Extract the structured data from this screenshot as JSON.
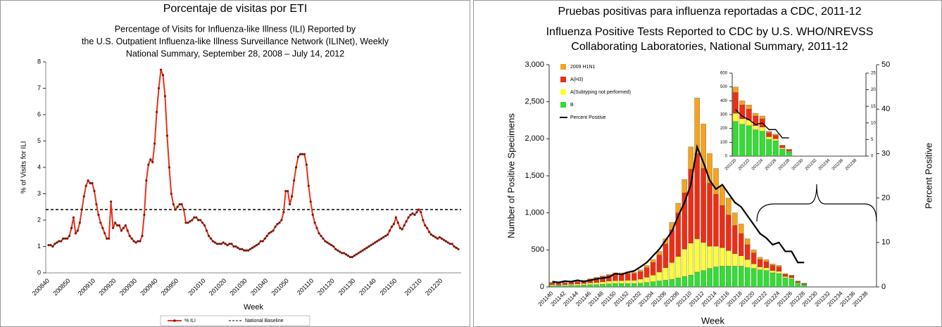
{
  "chart_data": [
    {
      "type": "line",
      "title": "Porcentaje de visitas por ETI",
      "subtitle": [
        "Percentage of Visits for Influenza-like Illness (ILI) Reported by",
        "the U.S. Outpatient Influenza-like Illness Surveillance Network (ILINet), Weekly",
        "National Summary, September 28, 2008 – July 14, 2012"
      ],
      "xlabel": "Week",
      "ylabel": "% of Visits for ILI",
      "ylim": [
        0,
        8
      ],
      "yticks": [
        0,
        1,
        2,
        3,
        4,
        5,
        6,
        7,
        8
      ],
      "baseline_name": "National Baseline",
      "baseline": 2.4,
      "categories": [
        "200840",
        null,
        null,
        null,
        null,
        null,
        null,
        null,
        null,
        null,
        "200850",
        null,
        null,
        null,
        null,
        null,
        null,
        null,
        null,
        null,
        null,
        null,
        "200910",
        null,
        null,
        null,
        null,
        null,
        null,
        null,
        null,
        null,
        "200920",
        null,
        null,
        null,
        null,
        null,
        null,
        null,
        null,
        null,
        "200930",
        null,
        null,
        null,
        null,
        null,
        null,
        null,
        null,
        null,
        "200940",
        null,
        null,
        null,
        null,
        null,
        null,
        null,
        null,
        null,
        "200950",
        null,
        null,
        null,
        null,
        null,
        null,
        null,
        null,
        null,
        null,
        null,
        null,
        "201010",
        null,
        null,
        null,
        null,
        null,
        null,
        null,
        null,
        null,
        "201020",
        null,
        null,
        null,
        null,
        null,
        null,
        null,
        null,
        null,
        "201030",
        null,
        null,
        null,
        null,
        null,
        null,
        null,
        null,
        null,
        "201040",
        null,
        null,
        null,
        null,
        null,
        null,
        null,
        null,
        null,
        "201050",
        null,
        null,
        null,
        null,
        null,
        null,
        null,
        null,
        null,
        null,
        null,
        "201110",
        null,
        null,
        null,
        null,
        null,
        null,
        null,
        null,
        null,
        "201120",
        null,
        null,
        null,
        null,
        null,
        null,
        null,
        null,
        null,
        "201130",
        null,
        null,
        null,
        null,
        null,
        null,
        null,
        null,
        null,
        "201140",
        null,
        null,
        null,
        null,
        null,
        null,
        null,
        null,
        null,
        "201150",
        null,
        null,
        null,
        null,
        null,
        null,
        null,
        null,
        null,
        null,
        null,
        "201210",
        null,
        null,
        null,
        null,
        null,
        null,
        null,
        null,
        null,
        "201220",
        null,
        null,
        null,
        null,
        null,
        null,
        null,
        null
      ],
      "series": [
        {
          "name": "% ILI",
          "color": "#e8321c",
          "values": [
            1.05,
            1.05,
            1.0,
            1.1,
            1.15,
            1.2,
            1.2,
            1.3,
            1.3,
            1.3,
            1.4,
            1.7,
            2.1,
            1.5,
            1.6,
            1.9,
            2.4,
            2.9,
            3.3,
            3.5,
            3.4,
            3.4,
            3.1,
            2.6,
            2.2,
            1.9,
            1.7,
            1.5,
            1.3,
            1.3,
            2.7,
            1.7,
            1.9,
            1.8,
            1.8,
            1.6,
            1.7,
            1.8,
            1.6,
            1.4,
            1.3,
            1.2,
            1.15,
            1.2,
            1.2,
            1.4,
            2.2,
            3.5,
            4.1,
            4.3,
            4.2,
            4.9,
            6.1,
            7.0,
            7.7,
            7.5,
            6.7,
            5.2,
            4.0,
            3.0,
            2.6,
            2.4,
            2.5,
            2.6,
            2.6,
            2.4,
            1.9,
            1.9,
            1.95,
            2.0,
            2.1,
            2.1,
            2.0,
            2.0,
            1.9,
            1.8,
            1.6,
            1.4,
            1.3,
            1.2,
            1.15,
            1.1,
            1.1,
            1.1,
            1.15,
            1.1,
            1.05,
            1.1,
            1.1,
            1.0,
            1.0,
            0.95,
            0.9,
            0.9,
            0.85,
            0.85,
            0.85,
            0.9,
            0.95,
            1.0,
            1.05,
            1.1,
            1.2,
            1.2,
            1.3,
            1.4,
            1.5,
            1.55,
            1.6,
            1.75,
            1.85,
            1.9,
            2.0,
            2.3,
            3.1,
            3.1,
            2.6,
            2.9,
            3.5,
            4.0,
            4.4,
            4.5,
            4.5,
            4.5,
            4.1,
            3.3,
            2.7,
            2.2,
            1.9,
            1.7,
            1.5,
            1.4,
            1.3,
            1.2,
            1.15,
            1.1,
            1.05,
            1.0,
            0.9,
            0.85,
            0.8,
            0.75,
            0.75,
            0.7,
            0.65,
            0.6,
            0.6,
            0.65,
            0.7,
            0.75,
            0.8,
            0.85,
            0.9,
            0.95,
            1.0,
            1.05,
            1.1,
            1.15,
            1.2,
            1.25,
            1.3,
            1.35,
            1.4,
            1.45,
            1.6,
            1.75,
            1.85,
            2.1,
            1.9,
            1.7,
            1.65,
            1.8,
            1.95,
            2.1,
            2.2,
            2.25,
            2.2,
            2.3,
            2.4,
            2.3,
            2.0,
            1.8,
            1.7,
            1.55,
            1.45,
            1.4,
            1.35,
            1.3,
            1.35,
            1.3,
            1.25,
            1.2,
            1.15,
            1.1,
            1.1,
            1.0,
            0.95,
            0.9
          ]
        }
      ]
    },
    {
      "type": "bar",
      "stacked": true,
      "title": "Pruebas positivas para influenza reportadas a CDC, 2011-12",
      "subtitle": [
        "Influenza Positive Tests Reported to CDC by U.S. WHO/NREVSS",
        "Collaborating Laboratories, National Summary, 2011-12"
      ],
      "xlabel": "Week",
      "ylabel": "Number of Positive Specimens",
      "y2label": "Percent Positive",
      "ylim": [
        0,
        3000
      ],
      "yticks": [
        0,
        500,
        {
          "value": 1000,
          "label": "1,000"
        },
        {
          "value": 1500,
          "label": "1,500"
        },
        {
          "value": 2000,
          "label": "2,000"
        },
        {
          "value": 2500,
          "label": "2,500"
        },
        {
          "value": 3000,
          "label": "3,000"
        }
      ],
      "y2lim": [
        0,
        50
      ],
      "y2ticks": [
        0,
        10,
        20,
        30,
        40,
        50
      ],
      "legend": "upper left",
      "categories": [
        "201140",
        null,
        "201142",
        null,
        "201144",
        null,
        "201146",
        null,
        "201148",
        null,
        "201150",
        null,
        "201152",
        null,
        "201202",
        null,
        "201204",
        null,
        "201206",
        null,
        "201208",
        null,
        "201210",
        null,
        "201212",
        null,
        "201214",
        null,
        "201216",
        null,
        "201218",
        null,
        "201220",
        null,
        "201222",
        null,
        "201224",
        null,
        "201226",
        null,
        "201228",
        null,
        "201230",
        null,
        "201232",
        null,
        "201234",
        null,
        "201236",
        null,
        "201238",
        null
      ],
      "series": [
        {
          "name": "2009 H1N1",
          "color": "#f5a31f",
          "values": [
            5,
            5,
            5,
            5,
            10,
            10,
            10,
            15,
            15,
            15,
            20,
            20,
            20,
            20,
            25,
            30,
            40,
            50,
            70,
            100,
            130,
            180,
            300,
            750,
            600,
            400,
            350,
            250,
            230,
            170,
            130,
            80,
            40,
            30,
            30,
            20,
            20,
            10,
            10,
            5,
            5,
            null,
            null,
            null,
            null,
            null,
            null,
            null,
            null,
            null,
            null,
            null
          ]
        },
        {
          "name": "A(H3)",
          "color": "#ee2e14",
          "values": [
            25,
            20,
            25,
            30,
            30,
            35,
            45,
            55,
            65,
            75,
            85,
            85,
            90,
            90,
            100,
            130,
            170,
            230,
            320,
            440,
            590,
            760,
            1000,
            1150,
            1000,
            850,
            700,
            570,
            480,
            380,
            300,
            200,
            150,
            100,
            80,
            70,
            60,
            30,
            25,
            15,
            10,
            null,
            null,
            null,
            null,
            null,
            null,
            null,
            null,
            null,
            null,
            null
          ]
        },
        {
          "name": "A(Subtyping not performed)",
          "color": "#ffff33",
          "values": [
            15,
            10,
            15,
            15,
            20,
            20,
            25,
            30,
            35,
            40,
            40,
            40,
            45,
            45,
            55,
            70,
            90,
            120,
            170,
            230,
            290,
            370,
            430,
            450,
            380,
            300,
            280,
            250,
            210,
            170,
            140,
            110,
            60,
            40,
            40,
            30,
            30,
            20,
            15,
            10,
            5,
            null,
            null,
            null,
            null,
            null,
            null,
            null,
            null,
            null,
            null,
            null
          ]
        },
        {
          "name": "B",
          "color": "#33dd33",
          "values": [
            15,
            15,
            15,
            20,
            20,
            25,
            30,
            30,
            35,
            40,
            45,
            45,
            45,
            45,
            50,
            60,
            70,
            80,
            90,
            100,
            120,
            140,
            160,
            200,
            220,
            250,
            270,
            280,
            280,
            280,
            280,
            260,
            250,
            230,
            220,
            190,
            180,
            120,
            110,
            50,
            30,
            null,
            null,
            null,
            null,
            null,
            null,
            null,
            null,
            null,
            null,
            null
          ]
        },
        {
          "name": "Percent Positive",
          "color": "#000000",
          "axis": "y2",
          "values": [
            1.2,
            1,
            1.3,
            1.2,
            1.5,
            1.2,
            1.5,
            1.8,
            2,
            2.2,
            3,
            2.8,
            3.3,
            3.6,
            4.5,
            5.5,
            7,
            8.5,
            10.5,
            12.5,
            16,
            19,
            23,
            31.5,
            28,
            24,
            22,
            23,
            21,
            19,
            18,
            16,
            14,
            12,
            11,
            9.5,
            10,
            8,
            8,
            5.5,
            5.5,
            null,
            null,
            null,
            null,
            null,
            null,
            null,
            null,
            null,
            null,
            null
          ]
        }
      ]
    },
    {
      "type": "bar",
      "stacked": true,
      "ylim": [
        0,
        600
      ],
      "yticks": [
        0,
        100,
        200,
        300,
        400,
        500,
        600
      ],
      "y2lim": [
        0,
        25
      ],
      "y2ticks": [
        0,
        5,
        10,
        15,
        20,
        25
      ],
      "categories": [
        "201220",
        null,
        "201222",
        null,
        "201224",
        null,
        "201226",
        null,
        "201228",
        null,
        "201230",
        null,
        "201232",
        null,
        "201234",
        null,
        "201236",
        null,
        "201238",
        null
      ],
      "series": [
        {
          "color": "#f5a31f",
          "values": [
            40,
            30,
            30,
            20,
            20,
            10,
            10,
            5,
            5,
            null,
            null,
            null,
            null,
            null,
            null,
            null,
            null,
            null,
            null,
            null
          ]
        },
        {
          "color": "#ee2e14",
          "values": [
            150,
            100,
            80,
            70,
            60,
            30,
            25,
            15,
            10,
            null,
            null,
            null,
            null,
            null,
            null,
            null,
            null,
            null,
            null,
            null
          ]
        },
        {
          "color": "#ffff33",
          "values": [
            60,
            40,
            40,
            30,
            30,
            20,
            15,
            10,
            5,
            null,
            null,
            null,
            null,
            null,
            null,
            null,
            null,
            null,
            null,
            null
          ]
        },
        {
          "color": "#33dd33",
          "values": [
            250,
            230,
            220,
            190,
            180,
            120,
            110,
            50,
            30,
            null,
            null,
            null,
            null,
            null,
            null,
            null,
            null,
            null,
            null,
            null
          ]
        },
        {
          "color": "#000000",
          "axis": "y2",
          "values": [
            14,
            12,
            11,
            9.5,
            10,
            8,
            8,
            5.5,
            5.5,
            null,
            null,
            null,
            null,
            null,
            null,
            null,
            null,
            null,
            null,
            null
          ]
        }
      ]
    }
  ]
}
